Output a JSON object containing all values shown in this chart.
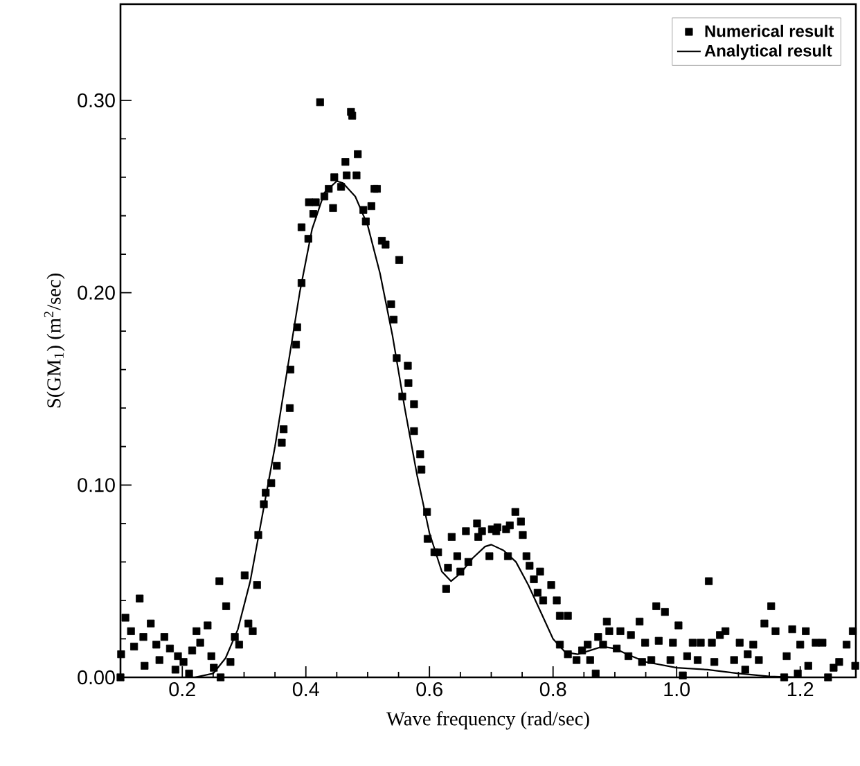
{
  "chart_data": {
    "type": "scatter",
    "xlabel": "Wave frequency (rad/sec)",
    "ylabel": "S(GM$_{1}$) (m$^{2}$/sec)",
    "xlim": [
      0.1,
      1.29
    ],
    "ylim": [
      0,
      0.35
    ],
    "xticks": [
      {
        "value": 0.2,
        "label": "0.2"
      },
      {
        "value": 0.4,
        "label": "0.4"
      },
      {
        "value": 0.6,
        "label": "0.6"
      },
      {
        "value": 0.8,
        "label": "0.8"
      },
      {
        "value": 1.0,
        "label": "1.0"
      },
      {
        "value": 1.2,
        "label": "1.2"
      }
    ],
    "yticks": [
      {
        "value": 0,
        "label": "0.00"
      },
      {
        "value": 0.1,
        "label": "0.10"
      },
      {
        "value": 0.2,
        "label": "0.20"
      },
      {
        "value": 0.3,
        "label": "0.30"
      }
    ],
    "legend": "top right",
    "grid": false,
    "series": [
      {
        "name": "Numerical result",
        "color": "#000000",
        "marker": "square",
        "x": [
          0.1,
          0.101,
          0.108,
          0.117,
          0.122,
          0.131,
          0.137,
          0.139,
          0.149,
          0.158,
          0.163,
          0.171,
          0.18,
          0.189,
          0.193,
          0.202,
          0.211,
          0.216,
          0.223,
          0.229,
          0.241,
          0.247,
          0.251,
          0.26,
          0.262,
          0.271,
          0.278,
          0.285,
          0.292,
          0.301,
          0.307,
          0.314,
          0.321,
          0.323,
          0.332,
          0.335,
          0.344,
          0.353,
          0.361,
          0.364,
          0.374,
          0.375,
          0.384,
          0.386,
          0.393,
          0.393,
          0.404,
          0.405,
          0.412,
          0.416,
          0.423,
          0.43,
          0.437,
          0.444,
          0.446,
          0.457,
          0.464,
          0.466,
          0.473,
          0.475,
          0.482,
          0.484,
          0.493,
          0.497,
          0.506,
          0.511,
          0.515,
          0.523,
          0.529,
          0.538,
          0.542,
          0.551,
          0.547,
          0.556,
          0.565,
          0.566,
          0.575,
          0.575,
          0.585,
          0.587,
          0.596,
          0.597,
          0.608,
          0.614,
          0.627,
          0.63,
          0.636,
          0.645,
          0.65,
          0.659,
          0.663,
          0.677,
          0.679,
          0.685,
          0.697,
          0.701,
          0.708,
          0.71,
          0.724,
          0.727,
          0.73,
          0.739,
          0.748,
          0.751,
          0.757,
          0.762,
          0.769,
          0.775,
          0.779,
          0.784,
          0.797,
          0.806,
          0.811,
          0.824,
          0.811,
          0.824,
          0.838,
          0.847,
          0.856,
          0.86,
          0.869,
          0.873,
          0.881,
          0.887,
          0.891,
          0.903,
          0.909,
          0.922,
          0.926,
          0.94,
          0.944,
          0.949,
          0.959,
          0.967,
          0.971,
          0.981,
          0.99,
          0.994,
          1.003,
          1.01,
          1.017,
          1.026,
          1.034,
          1.039,
          1.052,
          1.057,
          1.061,
          1.07,
          1.079,
          1.093,
          1.102,
          1.111,
          1.115,
          1.124,
          1.133,
          1.142,
          1.153,
          1.16,
          1.174,
          1.178,
          1.187,
          1.196,
          1.2,
          1.209,
          1.213,
          1.225,
          1.236,
          1.245,
          1.254,
          1.263,
          1.275,
          1.285,
          1.289
        ],
        "values": [
          0.0,
          0.012,
          0.031,
          0.024,
          0.016,
          0.041,
          0.021,
          0.006,
          0.028,
          0.017,
          0.009,
          0.021,
          0.015,
          0.004,
          0.011,
          0.008,
          0.002,
          0.014,
          0.024,
          0.018,
          0.027,
          0.011,
          0.005,
          0.05,
          0.0,
          0.037,
          0.008,
          0.021,
          0.017,
          0.053,
          0.028,
          0.024,
          0.048,
          0.074,
          0.09,
          0.096,
          0.101,
          0.11,
          0.122,
          0.129,
          0.14,
          0.16,
          0.173,
          0.182,
          0.205,
          0.234,
          0.228,
          0.247,
          0.241,
          0.247,
          0.299,
          0.25,
          0.254,
          0.244,
          0.26,
          0.255,
          0.268,
          0.261,
          0.294,
          0.292,
          0.261,
          0.272,
          0.243,
          0.237,
          0.245,
          0.254,
          0.254,
          0.227,
          0.225,
          0.194,
          0.186,
          0.217,
          0.166,
          0.146,
          0.162,
          0.153,
          0.142,
          0.128,
          0.116,
          0.108,
          0.086,
          0.072,
          0.065,
          0.065,
          0.046,
          0.057,
          0.073,
          0.063,
          0.055,
          0.076,
          0.06,
          0.08,
          0.073,
          0.076,
          0.063,
          0.077,
          0.076,
          0.078,
          0.077,
          0.063,
          0.079,
          0.086,
          0.081,
          0.074,
          0.063,
          0.058,
          0.051,
          0.044,
          0.055,
          0.04,
          0.048,
          0.04,
          0.032,
          0.032,
          0.017,
          0.012,
          0.009,
          0.014,
          0.017,
          0.009,
          0.002,
          0.021,
          0.017,
          0.029,
          0.024,
          0.015,
          0.024,
          0.011,
          0.022,
          0.029,
          0.008,
          0.018,
          0.009,
          0.037,
          0.019,
          0.034,
          0.009,
          0.018,
          0.027,
          0.001,
          0.011,
          0.018,
          0.009,
          0.018,
          0.05,
          0.018,
          0.008,
          0.022,
          0.024,
          0.009,
          0.018,
          0.004,
          0.012,
          0.017,
          0.009,
          0.028,
          0.037,
          0.024,
          0.0,
          0.011,
          0.025,
          0.002,
          0.017,
          0.024,
          0.006,
          0.018,
          0.018,
          0.0,
          0.005,
          0.008,
          0.017,
          0.024,
          0.006
        ]
      },
      {
        "name": "Analytical result",
        "type": "line",
        "color": "#000000",
        "line_style": "solid",
        "marker": "none",
        "x": [
          0.22,
          0.25,
          0.27,
          0.29,
          0.31,
          0.33,
          0.35,
          0.37,
          0.39,
          0.41,
          0.43,
          0.45,
          0.46,
          0.48,
          0.5,
          0.52,
          0.54,
          0.56,
          0.58,
          0.6,
          0.62,
          0.635,
          0.65,
          0.67,
          0.69,
          0.7,
          0.72,
          0.74,
          0.76,
          0.78,
          0.8,
          0.82,
          0.84,
          0.86,
          0.88,
          0.9,
          0.92,
          0.95,
          1.0,
          1.05,
          1.1,
          1.15,
          1.2,
          1.29
        ],
        "values": [
          0.0,
          0.002,
          0.01,
          0.025,
          0.05,
          0.085,
          0.12,
          0.16,
          0.2,
          0.233,
          0.252,
          0.258,
          0.257,
          0.25,
          0.235,
          0.21,
          0.178,
          0.14,
          0.105,
          0.075,
          0.055,
          0.05,
          0.054,
          0.062,
          0.068,
          0.069,
          0.066,
          0.06,
          0.048,
          0.034,
          0.02,
          0.013,
          0.012,
          0.014,
          0.016,
          0.015,
          0.012,
          0.008,
          0.005,
          0.004,
          0.002,
          0.0005,
          0.0,
          0.0
        ]
      }
    ]
  }
}
